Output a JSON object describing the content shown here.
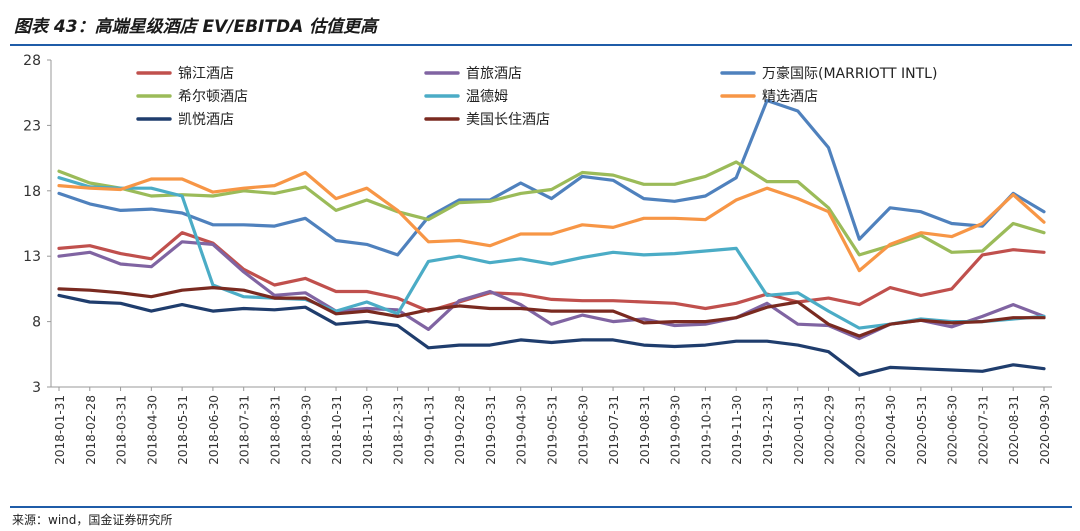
{
  "header": {
    "title": "图表 43：高端星级酒店 EV/EBITDA 估值更高"
  },
  "footer": {
    "source": "来源：wind，国金证券研究所"
  },
  "chart_data": {
    "type": "line",
    "title": "高端星级酒店 EV/EBITDA 估值更高",
    "xlabel": "",
    "ylabel": "",
    "ylim": [
      3,
      28
    ],
    "yticks": [
      3,
      8,
      13,
      18,
      23,
      28
    ],
    "grid": false,
    "legend_position": "top",
    "categories": [
      "2018-01-31",
      "2018-02-28",
      "2018-03-31",
      "2018-04-30",
      "2018-05-31",
      "2018-06-30",
      "2018-07-31",
      "2018-08-31",
      "2018-09-30",
      "2018-10-31",
      "2018-11-30",
      "2018-12-31",
      "2019-01-31",
      "2019-02-28",
      "2019-03-31",
      "2019-04-30",
      "2019-05-31",
      "2019-06-30",
      "2019-07-31",
      "2019-08-31",
      "2019-09-30",
      "2019-10-31",
      "2019-11-30",
      "2019-12-31",
      "2020-01-31",
      "2020-02-29",
      "2020-03-31",
      "2020-04-30",
      "2020-05-31",
      "2020-06-30",
      "2020-07-31",
      "2020-08-31",
      "2020-09-30"
    ],
    "series": [
      {
        "name": "锦江酒店",
        "color": "#c0504d",
        "values": [
          13.6,
          13.8,
          13.2,
          12.8,
          14.8,
          14.0,
          12.0,
          10.8,
          11.3,
          10.3,
          10.3,
          9.8,
          8.8,
          9.5,
          10.2,
          10.1,
          9.7,
          9.6,
          9.6,
          9.5,
          9.4,
          9.0,
          9.4,
          10.1,
          9.5,
          9.8,
          9.3,
          10.6,
          10.0,
          10.5,
          13.1,
          13.5,
          13.3
        ]
      },
      {
        "name": "首旅酒店",
        "color": "#8064a2",
        "values": [
          13.0,
          13.3,
          12.4,
          12.2,
          14.1,
          13.9,
          11.8,
          10.0,
          10.2,
          8.8,
          9.0,
          8.9,
          7.4,
          9.6,
          10.3,
          9.3,
          7.8,
          8.5,
          8.0,
          8.2,
          7.7,
          7.8,
          8.3,
          9.4,
          7.8,
          7.7,
          6.7,
          7.8,
          8.1,
          7.6,
          8.4,
          9.3,
          8.4
        ]
      },
      {
        "name": "万豪国际(MARRIOTT INTL)",
        "color": "#4f81bd",
        "values": [
          17.8,
          17.0,
          16.5,
          16.6,
          16.3,
          15.4,
          15.4,
          15.3,
          15.9,
          14.2,
          13.9,
          13.1,
          16.0,
          17.3,
          17.3,
          18.6,
          17.4,
          19.1,
          18.8,
          17.4,
          17.2,
          17.6,
          19.0,
          24.9,
          24.1,
          21.3,
          14.3,
          16.7,
          16.4,
          15.5,
          15.3,
          17.8,
          16.4
        ]
      },
      {
        "name": "希尔顿酒店",
        "color": "#9bbb59",
        "values": [
          19.5,
          18.6,
          18.2,
          17.6,
          17.7,
          17.6,
          18.0,
          17.8,
          18.3,
          16.5,
          17.3,
          16.4,
          15.8,
          17.1,
          17.2,
          17.8,
          18.1,
          19.4,
          19.2,
          18.5,
          18.5,
          19.1,
          20.2,
          18.7,
          18.7,
          16.7,
          13.1,
          13.8,
          14.6,
          13.3,
          13.4,
          15.5,
          14.8
        ]
      },
      {
        "name": "温德姆",
        "color": "#4bacc6",
        "values": [
          19.0,
          18.3,
          18.2,
          18.2,
          17.6,
          10.8,
          9.9,
          9.8,
          9.7,
          8.8,
          9.5,
          8.6,
          12.6,
          13.0,
          12.5,
          12.8,
          12.4,
          12.9,
          13.3,
          13.1,
          13.2,
          13.4,
          13.6,
          10.0,
          10.2,
          8.8,
          7.5,
          7.8,
          8.2,
          8.0,
          8.0,
          8.2,
          8.4
        ]
      },
      {
        "name": "精选酒店",
        "color": "#f79646",
        "values": [
          18.4,
          18.2,
          18.1,
          18.9,
          18.9,
          17.9,
          18.2,
          18.4,
          19.4,
          17.4,
          18.2,
          16.5,
          14.1,
          14.2,
          13.8,
          14.7,
          14.7,
          15.4,
          15.2,
          15.9,
          15.9,
          15.8,
          17.3,
          18.2,
          17.4,
          16.4,
          11.9,
          13.9,
          14.8,
          14.5,
          15.5,
          17.7,
          15.6
        ]
      },
      {
        "name": "凯悦酒店",
        "color": "#1f3d6d",
        "values": [
          10.0,
          9.5,
          9.4,
          8.8,
          9.3,
          8.8,
          9.0,
          8.9,
          9.1,
          7.8,
          8.0,
          7.7,
          6.0,
          6.2,
          6.2,
          6.6,
          6.4,
          6.6,
          6.6,
          6.2,
          6.1,
          6.2,
          6.5,
          6.5,
          6.2,
          5.7,
          3.9,
          4.5,
          4.4,
          4.3,
          4.2,
          4.7,
          4.4
        ]
      },
      {
        "name": "美国长住酒店",
        "color": "#7a2a20",
        "values": [
          10.5,
          10.4,
          10.2,
          9.9,
          10.4,
          10.6,
          10.4,
          9.8,
          9.8,
          8.6,
          8.8,
          8.4,
          8.9,
          9.2,
          9.0,
          9.0,
          8.8,
          8.8,
          8.8,
          7.9,
          8.0,
          8.0,
          8.3,
          9.1,
          9.5,
          7.8,
          6.9,
          7.8,
          8.1,
          7.9,
          8.0,
          8.3,
          8.3
        ]
      }
    ]
  }
}
